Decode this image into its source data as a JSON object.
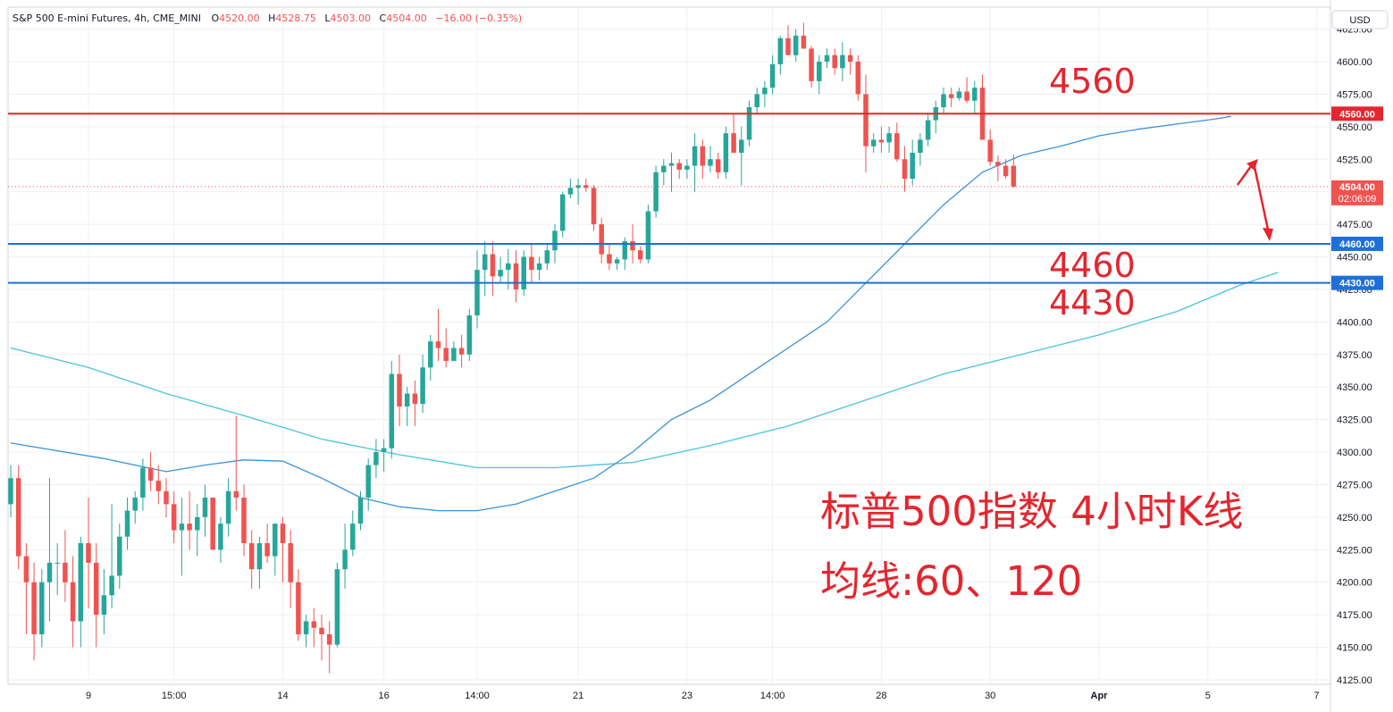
{
  "header": {
    "symbol": "S&P 500 E-mini Futures, 4h, CME_MINI",
    "o_label": "O",
    "o_value": "4520.00",
    "h_label": "H",
    "h_value": "4528.75",
    "l_label": "L",
    "l_value": "4503.00",
    "c_label": "C",
    "c_value": "4504.00",
    "change": "−16.00 (−0.35%)"
  },
  "currency": "USD",
  "colors": {
    "up": "#26a69a",
    "down": "#ef5350",
    "ma60": "#3a93d8",
    "ma120": "#48c4dd",
    "resistance": "#e4262e",
    "support": "#1e6fd9",
    "annotation": "#e4262e",
    "grid": "#eef0f4",
    "axis_text": "#131722"
  },
  "price_axis": {
    "ylim": [
      4125,
      4635
    ],
    "ticks": [
      4125,
      4150,
      4175,
      4200,
      4225,
      4250,
      4275,
      4300,
      4325,
      4350,
      4375,
      4400,
      4425,
      4450,
      4475,
      4500,
      4525,
      4550,
      4575,
      4600,
      4625
    ],
    "tick_labels": [
      "4125.00",
      "4150.00",
      "4175.00",
      "4200.00",
      "4225.00",
      "4250.00",
      "4275.00",
      "4300.00",
      "4325.00",
      "4350.00",
      "4375.00",
      "4400.00",
      "4425.00",
      "4450.00",
      "4475.00",
      "4500.00",
      "4525.00",
      "4550.00",
      "4575.00",
      "4600.00",
      "4625.00"
    ]
  },
  "time_axis": {
    "labels": [
      {
        "text": "9",
        "bar": 10,
        "bold": false
      },
      {
        "text": "15:00",
        "bar": 21,
        "bold": false
      },
      {
        "text": "14",
        "bar": 35,
        "bold": false
      },
      {
        "text": "16",
        "bar": 48,
        "bold": false
      },
      {
        "text": "14:00",
        "bar": 60,
        "bold": false
      },
      {
        "text": "21",
        "bar": 73,
        "bold": false
      },
      {
        "text": "23",
        "bar": 87,
        "bold": false
      },
      {
        "text": "14:00",
        "bar": 98,
        "bold": false
      },
      {
        "text": "28",
        "bar": 112,
        "bold": false
      },
      {
        "text": "30",
        "bar": 126,
        "bold": false
      },
      {
        "text": "Apr",
        "bar": 140,
        "bold": true
      },
      {
        "text": "5",
        "bar": 154,
        "bold": false
      },
      {
        "text": "7",
        "bar": 168,
        "bold": false
      }
    ]
  },
  "levels": [
    {
      "price": 4560,
      "label": "4560.00",
      "kind": "resistance"
    },
    {
      "price": 4460,
      "label": "4460.00",
      "kind": "support"
    },
    {
      "price": 4430,
      "label": "4430.00",
      "kind": "support"
    }
  ],
  "last_price": {
    "label": "4504.00",
    "countdown": "02:06:09",
    "price": 4504
  },
  "annotations": {
    "level_4560": "4560",
    "level_4460": "4460",
    "level_4430": "4430",
    "title_line1": "标普500指数 4小时K线",
    "title_line2": "均线:60、120"
  },
  "chart_data": {
    "type": "candlestick",
    "title": "S&P 500 E-mini Futures, 4h, CME_MINI",
    "ylim": [
      4125,
      4635
    ],
    "candles_ohlc": [
      [
        4260,
        4290,
        4250,
        4280
      ],
      [
        4280,
        4290,
        4210,
        4220
      ],
      [
        4220,
        4230,
        4160,
        4200
      ],
      [
        4200,
        4215,
        4140,
        4160
      ],
      [
        4160,
        4210,
        4150,
        4200
      ],
      [
        4200,
        4280,
        4170,
        4215
      ],
      [
        4215,
        4230,
        4190,
        4215
      ],
      [
        4215,
        4240,
        4185,
        4200
      ],
      [
        4200,
        4220,
        4150,
        4170
      ],
      [
        4170,
        4235,
        4150,
        4230
      ],
      [
        4230,
        4265,
        4180,
        4215
      ],
      [
        4215,
        4230,
        4150,
        4175
      ],
      [
        4175,
        4210,
        4160,
        4190
      ],
      [
        4190,
        4260,
        4180,
        4205
      ],
      [
        4205,
        4245,
        4195,
        4235
      ],
      [
        4235,
        4265,
        4225,
        4255
      ],
      [
        4255,
        4270,
        4245,
        4265
      ],
      [
        4265,
        4295,
        4255,
        4288
      ],
      [
        4288,
        4300,
        4270,
        4278
      ],
      [
        4278,
        4290,
        4260,
        4270
      ],
      [
        4270,
        4280,
        4250,
        4260
      ],
      [
        4260,
        4270,
        4230,
        4240
      ],
      [
        4240,
        4265,
        4205,
        4245
      ],
      [
        4245,
        4270,
        4225,
        4240
      ],
      [
        4240,
        4260,
        4220,
        4250
      ],
      [
        4250,
        4275,
        4235,
        4265
      ],
      [
        4265,
        4265,
        4225,
        4225
      ],
      [
        4225,
        4250,
        4215,
        4245
      ],
      [
        4245,
        4280,
        4235,
        4270
      ],
      [
        4270,
        4328,
        4255,
        4265
      ],
      [
        4265,
        4275,
        4220,
        4230
      ],
      [
        4230,
        4240,
        4195,
        4210
      ],
      [
        4210,
        4235,
        4195,
        4230
      ],
      [
        4230,
        4245,
        4215,
        4220
      ],
      [
        4220,
        4245,
        4205,
        4245
      ],
      [
        4245,
        4250,
        4200,
        4230
      ],
      [
        4230,
        4240,
        4180,
        4200
      ],
      [
        4200,
        4210,
        4155,
        4160
      ],
      [
        4160,
        4175,
        4150,
        4170
      ],
      [
        4170,
        4180,
        4150,
        4165
      ],
      [
        4165,
        4175,
        4140,
        4160
      ],
      [
        4160,
        4170,
        4130,
        4152
      ],
      [
        4152,
        4215,
        4150,
        4210
      ],
      [
        4210,
        4245,
        4195,
        4225
      ],
      [
        4225,
        4255,
        4220,
        4245
      ],
      [
        4245,
        4270,
        4240,
        4265
      ],
      [
        4265,
        4295,
        4255,
        4290
      ],
      [
        4290,
        4310,
        4280,
        4300
      ],
      [
        4300,
        4310,
        4285,
        4303
      ],
      [
        4303,
        4370,
        4295,
        4360
      ],
      [
        4360,
        4375,
        4320,
        4335
      ],
      [
        4335,
        4350,
        4320,
        4345
      ],
      [
        4345,
        4355,
        4320,
        4337
      ],
      [
        4337,
        4375,
        4330,
        4365
      ],
      [
        4365,
        4390,
        4355,
        4385
      ],
      [
        4385,
        4410,
        4370,
        4380
      ],
      [
        4380,
        4395,
        4365,
        4370
      ],
      [
        4370,
        4385,
        4370,
        4380
      ],
      [
        4380,
        4390,
        4365,
        4375
      ],
      [
        4375,
        4410,
        4370,
        4405
      ],
      [
        4405,
        4455,
        4395,
        4440
      ],
      [
        4440,
        4462,
        4420,
        4452
      ],
      [
        4452,
        4462,
        4420,
        4435
      ],
      [
        4435,
        4450,
        4430,
        4440
      ],
      [
        4440,
        4456,
        4425,
        4445
      ],
      [
        4445,
        4455,
        4415,
        4425
      ],
      [
        4425,
        4455,
        4420,
        4450
      ],
      [
        4450,
        4460,
        4430,
        4440
      ],
      [
        4440,
        4450,
        4432,
        4445
      ],
      [
        4445,
        4460,
        4440,
        4455
      ],
      [
        4455,
        4475,
        4445,
        4470
      ],
      [
        4470,
        4500,
        4465,
        4498
      ],
      [
        4498,
        4510,
        4495,
        4503
      ],
      [
        4503,
        4510,
        4490,
        4505
      ],
      [
        4505,
        4510,
        4500,
        4503
      ],
      [
        4503,
        4505,
        4470,
        4475
      ],
      [
        4475,
        4480,
        4445,
        4452
      ],
      [
        4452,
        4460,
        4440,
        4445
      ],
      [
        4445,
        4450,
        4440,
        4448
      ],
      [
        4448,
        4465,
        4440,
        4462
      ],
      [
        4462,
        4475,
        4445,
        4455
      ],
      [
        4455,
        4458,
        4445,
        4448
      ],
      [
        4448,
        4490,
        4445,
        4485
      ],
      [
        4485,
        4520,
        4480,
        4515
      ],
      [
        4515,
        4525,
        4505,
        4520
      ],
      [
        4520,
        4530,
        4500,
        4522
      ],
      [
        4522,
        4525,
        4510,
        4517
      ],
      [
        4517,
        4525,
        4510,
        4520
      ],
      [
        4520,
        4545,
        4500,
        4535
      ],
      [
        4535,
        4540,
        4510,
        4520
      ],
      [
        4520,
        4535,
        4515,
        4525
      ],
      [
        4525,
        4530,
        4510,
        4515
      ],
      [
        4515,
        4550,
        4510,
        4545
      ],
      [
        4545,
        4560,
        4535,
        4530
      ],
      [
        4530,
        4550,
        4505,
        4540
      ],
      [
        4540,
        4570,
        4535,
        4565
      ],
      [
        4565,
        4580,
        4560,
        4575
      ],
      [
        4575,
        4585,
        4565,
        4580
      ],
      [
        4580,
        4605,
        4575,
        4598
      ],
      [
        4598,
        4620,
        4590,
        4618
      ],
      [
        4618,
        4628,
        4610,
        4605
      ],
      [
        4605,
        4625,
        4600,
        4620
      ],
      [
        4620,
        4630,
        4610,
        4610
      ],
      [
        4610,
        4612,
        4580,
        4585
      ],
      [
        4585,
        4605,
        4575,
        4600
      ],
      [
        4600,
        4610,
        4595,
        4605
      ],
      [
        4605,
        4610,
        4590,
        4595
      ],
      [
        4595,
        4615,
        4585,
        4605
      ],
      [
        4605,
        4610,
        4590,
        4600
      ],
      [
        4600,
        4605,
        4570,
        4575
      ],
      [
        4575,
        4590,
        4515,
        4535
      ],
      [
        4535,
        4545,
        4530,
        4540
      ],
      [
        4540,
        4550,
        4530,
        4538
      ],
      [
        4538,
        4550,
        4530,
        4545
      ],
      [
        4545,
        4553,
        4523,
        4525
      ],
      [
        4525,
        4535,
        4500,
        4510
      ],
      [
        4510,
        4540,
        4505,
        4530
      ],
      [
        4530,
        4545,
        4520,
        4540
      ],
      [
        4540,
        4560,
        4535,
        4555
      ],
      [
        4555,
        4570,
        4545,
        4565
      ],
      [
        4565,
        4580,
        4560,
        4575
      ],
      [
        4575,
        4580,
        4565,
        4572
      ],
      [
        4572,
        4580,
        4570,
        4577
      ],
      [
        4577,
        4588,
        4568,
        4570
      ],
      [
        4570,
        4585,
        4560,
        4580
      ],
      [
        4580,
        4590,
        4540,
        4540
      ],
      [
        4540,
        4548,
        4520,
        4523
      ],
      [
        4523,
        4528,
        4508,
        4520
      ],
      [
        4520,
        4525,
        4510,
        4512
      ],
      [
        4520,
        4528.75,
        4503,
        4504
      ]
    ],
    "ma60": [
      [
        0,
        4307
      ],
      [
        12,
        4295
      ],
      [
        20,
        4285
      ],
      [
        25,
        4290
      ],
      [
        30,
        4294
      ],
      [
        35,
        4293
      ],
      [
        40,
        4280
      ],
      [
        45,
        4265
      ],
      [
        50,
        4258
      ],
      [
        55,
        4255
      ],
      [
        60,
        4255
      ],
      [
        65,
        4260
      ],
      [
        70,
        4270
      ],
      [
        75,
        4280
      ],
      [
        80,
        4300
      ],
      [
        85,
        4325
      ],
      [
        90,
        4340
      ],
      [
        95,
        4360
      ],
      [
        100,
        4380
      ],
      [
        105,
        4400
      ],
      [
        110,
        4430
      ],
      [
        115,
        4460
      ],
      [
        120,
        4490
      ],
      [
        125,
        4515
      ],
      [
        130,
        4528
      ],
      [
        135,
        4535
      ],
      [
        140,
        4543
      ],
      [
        145,
        4548
      ],
      [
        150,
        4552
      ],
      [
        155,
        4556
      ],
      [
        157,
        4558
      ]
    ],
    "ma120": [
      [
        0,
        4380
      ],
      [
        10,
        4365
      ],
      [
        20,
        4345
      ],
      [
        30,
        4328
      ],
      [
        40,
        4310
      ],
      [
        50,
        4298
      ],
      [
        60,
        4288
      ],
      [
        70,
        4288
      ],
      [
        80,
        4292
      ],
      [
        90,
        4305
      ],
      [
        100,
        4320
      ],
      [
        110,
        4340
      ],
      [
        120,
        4360
      ],
      [
        130,
        4375
      ],
      [
        140,
        4390
      ],
      [
        150,
        4408
      ],
      [
        158,
        4428
      ],
      [
        163,
        4438
      ]
    ],
    "levels": [
      4560,
      4460,
      4430
    ],
    "last": 4504,
    "annotation_text": [
      "4560",
      "4460",
      "4430",
      "标普500指数 4小时K线",
      "均线:60、120"
    ]
  }
}
